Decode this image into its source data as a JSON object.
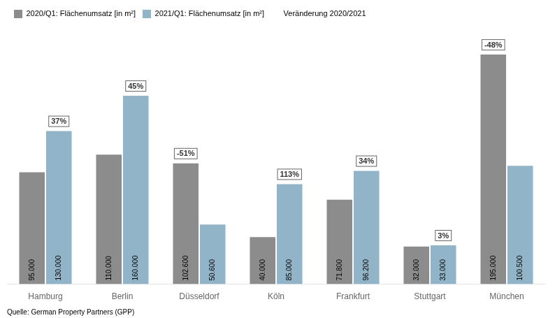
{
  "chart_data": {
    "type": "bar",
    "categories": [
      "Hamburg",
      "Berlin",
      "Düsseldorf",
      "Köln",
      "Frankfurt",
      "Stuttgart",
      "München"
    ],
    "series": [
      {
        "name": "2020/Q1: Flächenumsatz [in m²]",
        "color": "#8C8C8C",
        "values": [
          95000,
          110000,
          102600,
          40000,
          71800,
          32000,
          195000
        ],
        "value_labels": [
          "95.000",
          "110.000",
          "102.600",
          "40.000",
          "71.800",
          "32.000",
          "195.000"
        ]
      },
      {
        "name": "2021/Q1: Flächenumsatz [in m²]",
        "color": "#92B4C8",
        "values": [
          130000,
          160000,
          50600,
          85000,
          96200,
          33000,
          100500
        ],
        "value_labels": [
          "130.000",
          "160.000",
          "50.600",
          "85.000",
          "96.200",
          "33.000",
          "100.500"
        ]
      }
    ],
    "annotations": {
      "name": "Veränderung 2020/2021",
      "texts": [
        "37%",
        "45%",
        "-51%",
        "113%",
        "34%",
        "3%",
        "-48%"
      ]
    },
    "source": "Quelle: German Property Partners (GPP)",
    "ylim": [
      0,
      220000
    ],
    "tick_labels": "x",
    "data_labels": true,
    "grid": false,
    "legend": "upper left"
  }
}
